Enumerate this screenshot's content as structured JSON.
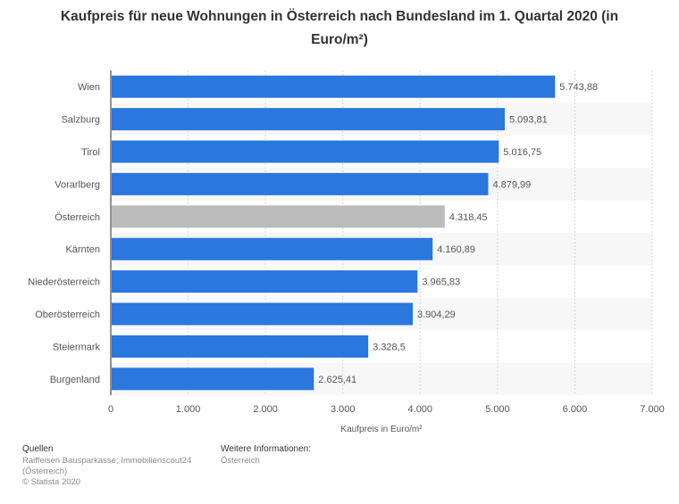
{
  "chart_data": {
    "type": "bar",
    "orientation": "horizontal",
    "title": "Kaufpreis für neue Wohnungen in Österreich nach Bundesland im 1. Quartal 2020 (in Euro/m²)",
    "xlabel": "Kaufpreis in Euro/m²",
    "categories": [
      "Wien",
      "Salzburg",
      "Tirol",
      "Vorarlberg",
      "Österreich",
      "Kärnten",
      "Niederösterreich",
      "Oberösterreich",
      "Steiermark",
      "Burgenland"
    ],
    "values": [
      5743.88,
      5093.81,
      5016.75,
      4879.99,
      4318.45,
      4160.89,
      3965.83,
      3904.29,
      3328.5,
      2625.41
    ],
    "value_labels": [
      "5.743,88",
      "5.093,81",
      "5.016,75",
      "4.879,99",
      "4.318,45",
      "4.160,89",
      "3.965,83",
      "3.904,29",
      "3.328,5",
      "2.625,41"
    ],
    "highlight_category": "Österreich",
    "xlim": [
      0,
      7000
    ],
    "ticks": [
      0,
      1000,
      2000,
      3000,
      4000,
      5000,
      6000,
      7000
    ],
    "tick_labels": [
      "0",
      "1.000",
      "2.000",
      "3.000",
      "4.000",
      "5.000",
      "6.000",
      "7.000"
    ],
    "grid": true,
    "colors": {
      "bar": "#2a77dd",
      "highlight": "#bcbcbc",
      "band": "#f7f7f7",
      "grid": "#d7d7d7"
    }
  },
  "footer": {
    "sources_heading": "Quellen",
    "sources_lines": [
      "Raiffeisen Bausparkasse; Immobilienscout24",
      "(Österreich)",
      "© Statista 2020"
    ],
    "info_heading": "Weitere Informationen:",
    "info_lines": [
      "Österreich"
    ]
  }
}
